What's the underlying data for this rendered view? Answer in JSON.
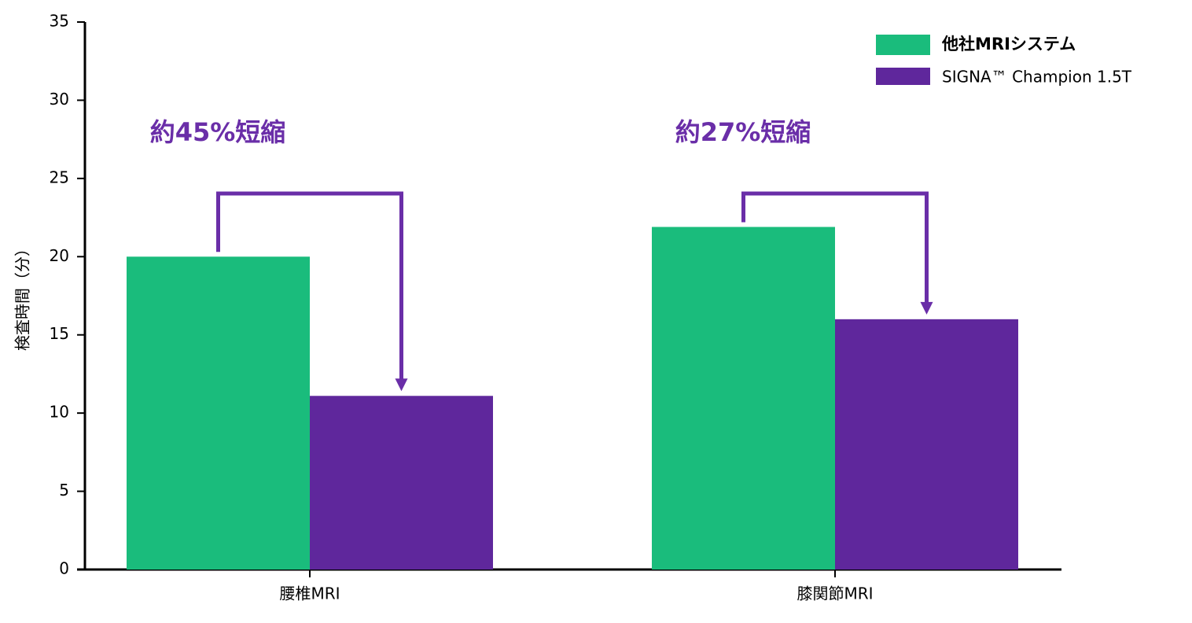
{
  "chart_data": {
    "type": "bar",
    "y_label": "検査時間（分）",
    "categories": [
      "腰椎MRI",
      "膝関節MRI"
    ],
    "series": [
      {
        "name": "他社MRIシステム",
        "color": "#1abc7c",
        "values": [
          20,
          21.9
        ]
      },
      {
        "name": "SIGNA™ Champion 1.5T",
        "color": "#5f279c",
        "values": [
          11.1,
          16.0
        ]
      }
    ],
    "annotations": [
      "約45%短縮",
      "約27%短縮"
    ],
    "annotation_color": "#6a2ea8",
    "ylim": [
      0,
      35
    ],
    "yticks": [
      0,
      5,
      10,
      15,
      20,
      25,
      30,
      35
    ],
    "legend": "top-right",
    "grid": false
  }
}
